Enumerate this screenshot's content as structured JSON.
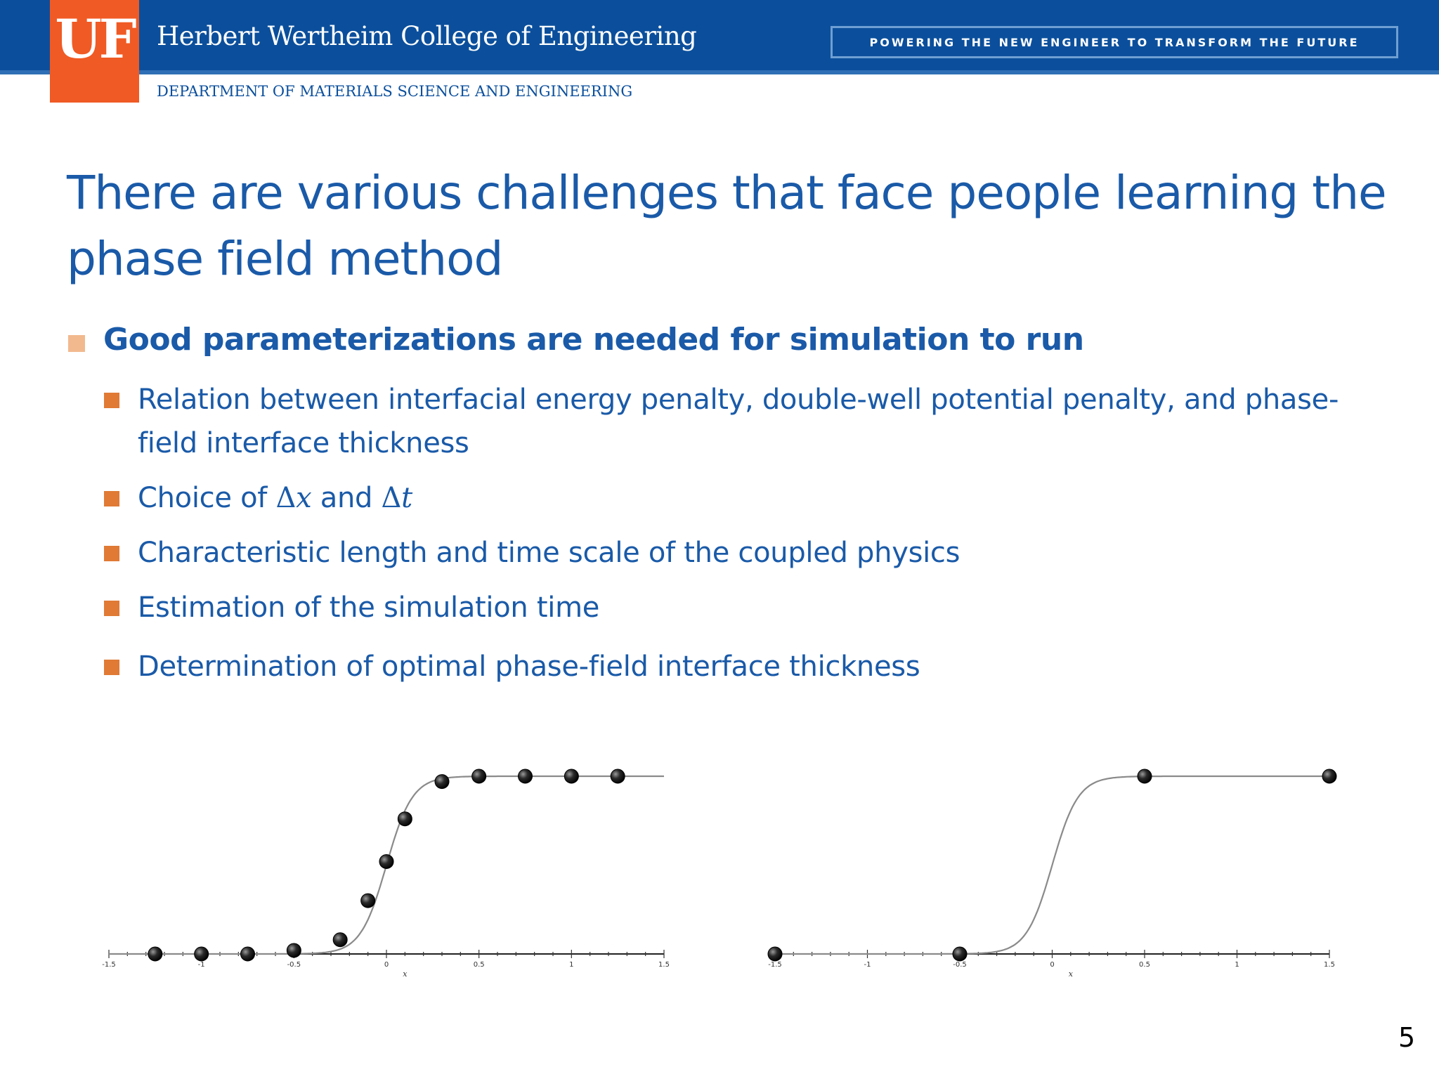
{
  "header": {
    "logo_text": "UF",
    "college_name": "Herbert Wertheim College of Engineering",
    "slogan": "POWERING THE NEW ENGINEER TO TRANSFORM THE FUTURE",
    "department": "DEPARTMENT OF MATERIALS SCIENCE AND ENGINEERING",
    "colors": {
      "band": "#0b4f9c",
      "logo": "#f05a24",
      "text_blue": "#1a5aa8",
      "bullet_orange": "#e07a35"
    }
  },
  "slide": {
    "title": "There are various challenges that face people learning the phase field method",
    "main_bullet": "Good parameterizations are needed for simulation to run",
    "sub_bullets": [
      {
        "text": "Relation between interfacial energy penalty, double-well potential penalty, and phase-field interface thickness"
      },
      {
        "prefix": "Choice of ",
        "math1_sym": "Δ",
        "math1_var": "x",
        "middle": " and ",
        "math2_sym": "Δ",
        "math2_var": "t"
      },
      {
        "text": "Characteristic length and time scale of the coupled physics"
      },
      {
        "text": "Estimation of the simulation time"
      },
      {
        "text": "Determination of optimal phase-field interface thickness"
      }
    ],
    "page_number": "5"
  },
  "chart_data": [
    {
      "type": "line",
      "curve": "smooth step (tanh profile) from 0 to 1 centered near x = 0",
      "xlabel": "x",
      "xlim": [
        -1.5,
        1.5
      ],
      "x_tick_labels": [
        "-1.5",
        "-1",
        "-0.5",
        "0",
        "0.5",
        "1",
        "1.5"
      ],
      "grid": false,
      "points": [
        {
          "x": -1.25,
          "y": 0
        },
        {
          "x": -1.0,
          "y": 0
        },
        {
          "x": -0.75,
          "y": 0
        },
        {
          "x": -0.5,
          "y": 0.02
        },
        {
          "x": -0.25,
          "y": 0.08
        },
        {
          "x": -0.1,
          "y": 0.3
        },
        {
          "x": 0.0,
          "y": 0.52
        },
        {
          "x": 0.1,
          "y": 0.76
        },
        {
          "x": 0.3,
          "y": 0.97
        },
        {
          "x": 0.5,
          "y": 1.0
        },
        {
          "x": 0.75,
          "y": 1.0
        },
        {
          "x": 1.0,
          "y": 1.0
        },
        {
          "x": 1.25,
          "y": 1.0
        }
      ]
    },
    {
      "type": "line",
      "curve": "smooth step (tanh profile) from 0 to 1 centered near x = 0",
      "xlabel": "x",
      "xlim": [
        -1.5,
        1.5
      ],
      "x_tick_labels": [
        "-1.5",
        "-1",
        "-0.5",
        "0",
        "0.5",
        "1",
        "1.5"
      ],
      "grid": false,
      "points": [
        {
          "x": -1.5,
          "y": 0
        },
        {
          "x": -0.5,
          "y": 0
        },
        {
          "x": 0.5,
          "y": 1.0
        },
        {
          "x": 1.5,
          "y": 1.0
        }
      ]
    }
  ]
}
